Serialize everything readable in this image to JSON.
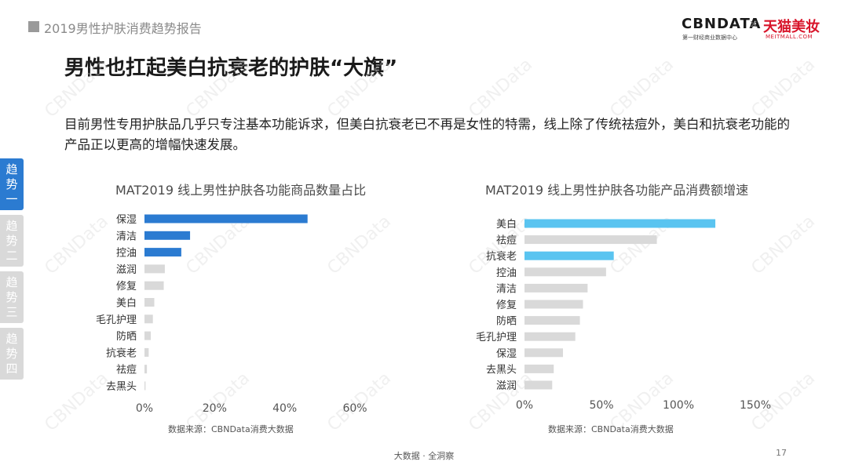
{
  "header": {
    "report_title": "2019男性护肤消费趋势报告"
  },
  "brand": {
    "cbndata": "CBNDATA",
    "cbndata_sub": "第一财经商业数据中心",
    "times": "×",
    "tmall": "天猫美妆",
    "tmall_sub": "MEITMALL.COM"
  },
  "page_title": "男性也扛起美白抗衰老的护肤“大旗”",
  "intro": "目前男性专用护肤品几乎只专注基本功能诉求，但美白抗衰老已不再是女性的特需，线上除了传统祛痘外，美白和抗衰老功能的产品正以更高的增幅快速发展。",
  "side_nav": [
    {
      "label": "趋势一",
      "active": true
    },
    {
      "label": "趋势二",
      "active": false
    },
    {
      "label": "趋势三",
      "active": false
    },
    {
      "label": "趋势四",
      "active": false
    }
  ],
  "watermark": "CBNData",
  "chart_data": [
    {
      "type": "bar",
      "orientation": "horizontal",
      "title": "MAT2019 线上男性护肤各功能商品数量占比",
      "categories": [
        "保湿",
        "清洁",
        "控油",
        "滋润",
        "修复",
        "美白",
        "毛孔护理",
        "防晒",
        "抗衰老",
        "祛痘",
        "去黑头"
      ],
      "values": [
        46.5,
        13,
        10.5,
        5.8,
        5.5,
        2.8,
        2.4,
        1.8,
        1.2,
        0.7,
        0.3
      ],
      "highlight": [
        true,
        true,
        true,
        false,
        false,
        false,
        false,
        false,
        false,
        false,
        false
      ],
      "xlim": [
        0,
        60
      ],
      "xticks": [
        "0%",
        "20%",
        "40%",
        "60%"
      ],
      "xtick_values": [
        0,
        20,
        40,
        60
      ],
      "grid": false,
      "source": "数据来源：CBNData消费大数据",
      "colors": {
        "highlight": "#2b7bd1",
        "base": "#d9d9d9"
      }
    },
    {
      "type": "bar",
      "orientation": "horizontal",
      "title": "MAT2019 线上男性护肤各功能产品消费额增速",
      "categories": [
        "美白",
        "祛痘",
        "抗衰老",
        "控油",
        "清洁",
        "修复",
        "防晒",
        "毛孔护理",
        "保湿",
        "去黑头",
        "滋润"
      ],
      "values": [
        124,
        86,
        58,
        53,
        41,
        38,
        36,
        33,
        25,
        19,
        18
      ],
      "highlight": [
        true,
        false,
        true,
        false,
        false,
        false,
        false,
        false,
        false,
        false,
        false
      ],
      "xlim": [
        0,
        150
      ],
      "xticks": [
        "0%",
        "50%",
        "100%",
        "150%"
      ],
      "xtick_values": [
        0,
        50,
        100,
        150
      ],
      "grid": false,
      "source": "数据来源：CBNData消费大数据",
      "colors": {
        "highlight": "#5ac4f0",
        "base": "#d9d9d9"
      }
    }
  ],
  "footer": {
    "text": "大数据 · 全洞察",
    "page_number": "17"
  }
}
